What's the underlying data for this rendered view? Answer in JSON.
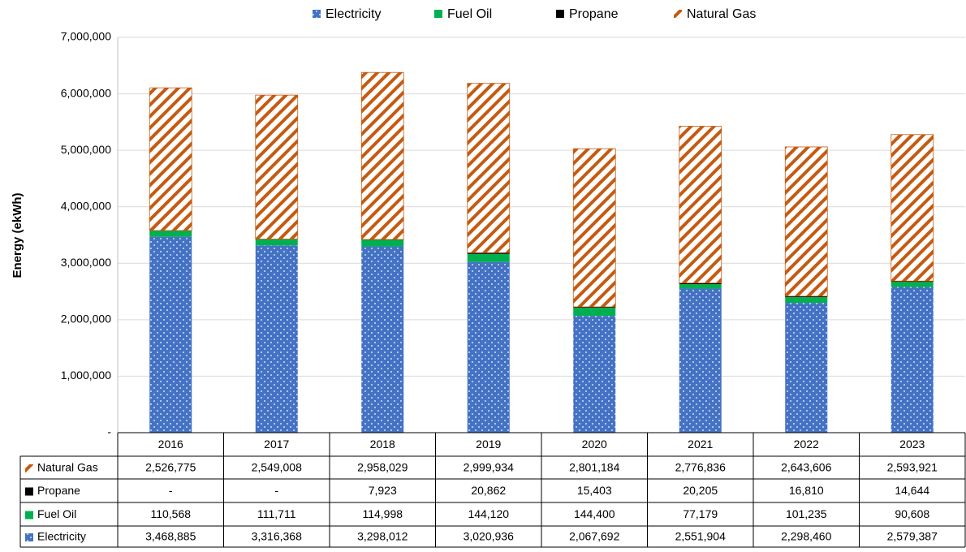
{
  "chart_data": {
    "type": "stacked_bar",
    "y_label": "Energy (ekWh)",
    "categories": [
      "2016",
      "2017",
      "2018",
      "2019",
      "2020",
      "2021",
      "2022",
      "2023"
    ],
    "ylim": [
      0,
      7000000
    ],
    "yticks": [
      {
        "value": 0,
        "label": "-"
      },
      {
        "value": 1000000,
        "label": "1,000,000"
      },
      {
        "value": 2000000,
        "label": "2,000,000"
      },
      {
        "value": 3000000,
        "label": "3,000,000"
      },
      {
        "value": 4000000,
        "label": "4,000,000"
      },
      {
        "value": 5000000,
        "label": "5,000,000"
      },
      {
        "value": 6000000,
        "label": "6,000,000"
      },
      {
        "value": 7000000,
        "label": "7,000,000"
      }
    ],
    "grid": true,
    "legend": "top",
    "series": [
      {
        "name": "Electricity",
        "color": "#4472c4",
        "pattern": "dots",
        "values": [
          3468885,
          3316368,
          3298012,
          3020936,
          2067692,
          2551904,
          2298460,
          2579387
        ],
        "value_labels": [
          "3,468,885",
          "3,316,368",
          "3,298,012",
          "3,020,936",
          "2,067,692",
          "2,551,904",
          "2,298,460",
          "2,579,387"
        ]
      },
      {
        "name": "Fuel Oil",
        "color": "#00b050",
        "values": [
          110568,
          111711,
          114998,
          144120,
          144400,
          77179,
          101235,
          90608
        ],
        "value_labels": [
          "110,568",
          "111,711",
          "114,998",
          "144,120",
          "144,400",
          "77,179",
          "101,235",
          "90,608"
        ]
      },
      {
        "name": "Propane",
        "color": "#000000",
        "values": [
          0,
          0,
          7923,
          20862,
          15403,
          20205,
          16810,
          14644
        ],
        "value_labels": [
          "-",
          "-",
          "7,923",
          "20,862",
          "15,403",
          "20,205",
          "16,810",
          "14,644"
        ]
      },
      {
        "name": "Natural Gas",
        "color": "#c55a11",
        "pattern": "hatch",
        "values": [
          2526775,
          2549008,
          2958029,
          2999934,
          2801184,
          2776836,
          2643606,
          2593921
        ],
        "value_labels": [
          "2,526,775",
          "2,549,008",
          "2,958,029",
          "2,999,934",
          "2,801,184",
          "2,776,836",
          "2,643,606",
          "2,593,921"
        ]
      }
    ]
  }
}
